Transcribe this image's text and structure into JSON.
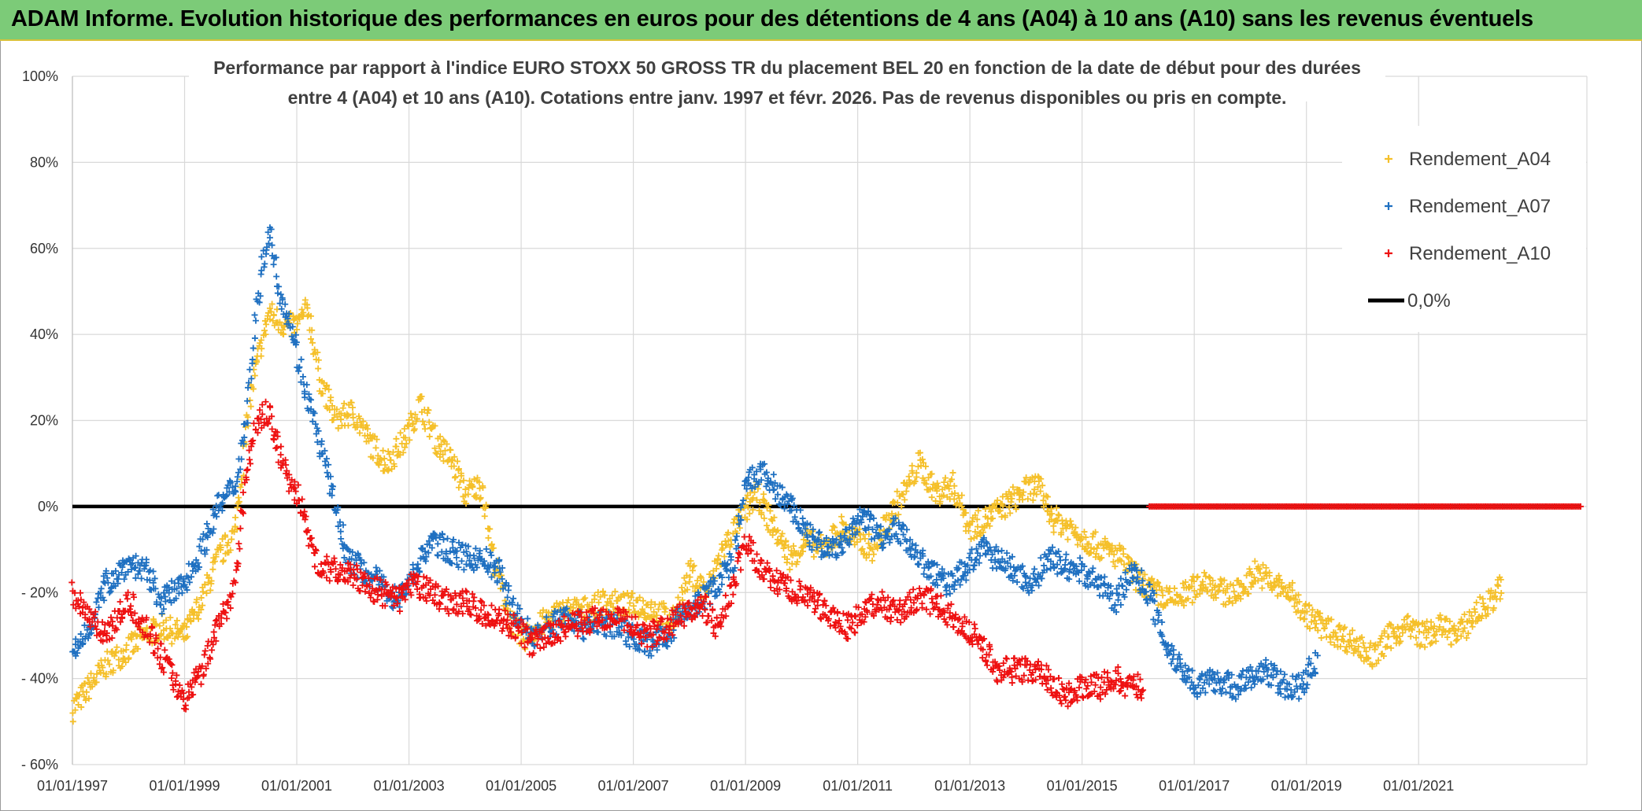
{
  "banner": {
    "title": "ADAM Informe. Evolution historique des performances en euros pour des détentions de 4 ans (A04) à 10 ans (A10) sans les revenus éventuels"
  },
  "colors": {
    "banner_bg": "#7ccb78",
    "a04": "#f5c02a",
    "a07": "#1f70c1",
    "a10": "#ee1111",
    "zero": "#000000"
  },
  "chart_data": {
    "type": "scatter",
    "title": "Performance par rapport à l'indice EURO STOXX 50 GROSS TR  du placement BEL 20 en fonction de la date de début pour des durées",
    "subtitle": "entre 4 (A04) et 10 ans (A10). Cotations entre janv. 1997 et févr. 2026. Pas de revenus disponibles ou pris en compte.",
    "x_range": [
      "1997-01-01",
      "2023-12-31"
    ],
    "ylim": [
      -60,
      100
    ],
    "y_ticks": [
      "100%",
      "80%",
      "60%",
      "40%",
      "20%",
      "0%",
      "- 20%",
      "- 40%",
      "- 60%"
    ],
    "y_tick_values": [
      100,
      80,
      60,
      40,
      20,
      0,
      -20,
      -40,
      -60
    ],
    "x_ticks": [
      "01/01/1997",
      "01/01/1999",
      "01/01/2001",
      "01/01/2003",
      "01/01/2005",
      "01/01/2007",
      "01/01/2009",
      "01/01/2011",
      "01/01/2013",
      "01/01/2015",
      "01/01/2017",
      "01/01/2019",
      "01/01/2021"
    ],
    "x_tick_years": [
      1997,
      1999,
      2001,
      2003,
      2005,
      2007,
      2009,
      2011,
      2013,
      2015,
      2017,
      2019,
      2021
    ],
    "grid": true,
    "legend_position": "top-right",
    "series": [
      {
        "name": "Rendement_A04",
        "color": "#f5c02a",
        "x": [
          1997.0,
          1997.3,
          1997.6,
          1998.0,
          1998.3,
          1998.6,
          1999.0,
          1999.3,
          1999.6,
          1999.9,
          2000.2,
          2000.5,
          2000.8,
          2001.0,
          2001.2,
          2001.4,
          2001.7,
          2002.0,
          2002.3,
          2002.6,
          2002.9,
          2003.2,
          2003.5,
          2003.8,
          2004.0,
          2004.3,
          2004.5,
          2004.8,
          2005.0,
          2005.3,
          2005.6,
          2005.9,
          2006.2,
          2006.5,
          2006.8,
          2007.1,
          2007.4,
          2007.7,
          2008.0,
          2008.3,
          2008.6,
          2008.9,
          2009.2,
          2009.5,
          2009.8,
          2010.1,
          2010.4,
          2010.7,
          2011.0,
          2011.3,
          2011.6,
          2011.9,
          2012.1,
          2012.4,
          2012.7,
          2013.0,
          2013.3,
          2013.6,
          2013.9,
          2014.2,
          2014.5,
          2014.8,
          2015.1,
          2015.4,
          2015.7,
          2016.0,
          2016.3,
          2016.6,
          2016.9,
          2017.2,
          2017.5,
          2017.8,
          2018.1,
          2018.4,
          2018.7,
          2019.0,
          2019.3,
          2019.6,
          2019.9,
          2020.2,
          2020.5,
          2020.8,
          2021.1,
          2021.4,
          2021.7,
          2022.0,
          2022.3,
          2022.5
        ],
        "y": [
          -47,
          -42,
          -37,
          -33,
          -30,
          -28,
          -30,
          -22,
          -12,
          -6,
          28,
          45,
          42,
          42,
          46,
          30,
          20,
          22,
          15,
          10,
          15,
          24,
          15,
          10,
          3,
          5,
          -12,
          -26,
          -31,
          -28,
          -25,
          -24,
          -24,
          -22,
          -23,
          -23,
          -24,
          -27,
          -15,
          -20,
          -10,
          -3,
          3,
          -5,
          -12,
          -8,
          -10,
          -5,
          -8,
          -10,
          -2,
          5,
          10,
          3,
          5,
          -5,
          -3,
          0,
          3,
          5,
          -3,
          -5,
          -8,
          -10,
          -12,
          -17,
          -20,
          -22,
          -20,
          -17,
          -20,
          -20,
          -15,
          -18,
          -20,
          -25,
          -28,
          -30,
          -32,
          -35,
          -30,
          -28,
          -30,
          -28,
          -30,
          -25,
          -22,
          -18
        ]
      },
      {
        "name": "Rendement_A07",
        "color": "#1f70c1",
        "x": [
          1997.0,
          1997.3,
          1997.6,
          1998.0,
          1998.3,
          1998.6,
          1999.0,
          1999.3,
          1999.6,
          1999.9,
          2000.1,
          2000.3,
          2000.5,
          2000.7,
          2000.9,
          2001.1,
          2001.3,
          2001.6,
          2001.9,
          2002.2,
          2002.5,
          2002.8,
          2003.1,
          2003.4,
          2003.7,
          2004.0,
          2004.3,
          2004.6,
          2004.9,
          2005.2,
          2005.5,
          2005.8,
          2006.1,
          2006.4,
          2006.7,
          2007.0,
          2007.3,
          2007.6,
          2007.9,
          2008.2,
          2008.5,
          2008.8,
          2009.0,
          2009.3,
          2009.6,
          2009.9,
          2010.2,
          2010.5,
          2010.8,
          2011.1,
          2011.4,
          2011.7,
          2012.0,
          2012.3,
          2012.6,
          2012.9,
          2013.2,
          2013.5,
          2013.8,
          2014.1,
          2014.4,
          2014.7,
          2015.0,
          2015.3,
          2015.6,
          2015.9,
          2016.2,
          2016.5,
          2016.8,
          2017.1,
          2017.4,
          2017.7,
          2018.0,
          2018.3,
          2018.6,
          2018.9,
          2019.2
        ],
        "y": [
          -35,
          -28,
          -18,
          -13,
          -15,
          -22,
          -18,
          -10,
          0,
          5,
          20,
          48,
          65,
          50,
          42,
          30,
          20,
          5,
          -12,
          -15,
          -18,
          -22,
          -15,
          -8,
          -10,
          -12,
          -12,
          -15,
          -25,
          -30,
          -28,
          -25,
          -28,
          -27,
          -28,
          -30,
          -32,
          -30,
          -25,
          -22,
          -18,
          -12,
          5,
          8,
          3,
          -2,
          -8,
          -10,
          -8,
          -2,
          -7,
          -5,
          -10,
          -15,
          -18,
          -15,
          -10,
          -12,
          -15,
          -18,
          -12,
          -14,
          -15,
          -18,
          -22,
          -15,
          -20,
          -32,
          -38,
          -42,
          -40,
          -42,
          -40,
          -38,
          -42,
          -42,
          -35
        ]
      },
      {
        "name": "Rendement_A10",
        "color": "#ee1111",
        "x": [
          1997.0,
          1997.3,
          1997.6,
          1998.0,
          1998.3,
          1998.6,
          1999.0,
          1999.3,
          1999.6,
          1999.9,
          2000.1,
          2000.3,
          2000.5,
          2000.7,
          2000.9,
          2001.1,
          2001.3,
          2001.6,
          2001.9,
          2002.2,
          2002.5,
          2002.8,
          2003.1,
          2003.4,
          2003.7,
          2004.0,
          2004.3,
          2004.6,
          2004.9,
          2005.2,
          2005.5,
          2005.8,
          2006.1,
          2006.4,
          2006.7,
          2007.0,
          2007.3,
          2007.6,
          2007.9,
          2008.2,
          2008.5,
          2008.8,
          2009.0,
          2009.3,
          2009.6,
          2009.9,
          2010.2,
          2010.5,
          2010.8,
          2011.1,
          2011.4,
          2011.7,
          2012.0,
          2012.3,
          2012.6,
          2012.9,
          2013.2,
          2013.5,
          2013.8,
          2014.1,
          2014.4,
          2014.7,
          2015.0,
          2015.3,
          2015.6,
          2015.9,
          2016.1
        ],
        "y": [
          -20,
          -25,
          -30,
          -22,
          -28,
          -35,
          -45,
          -38,
          -28,
          -18,
          8,
          20,
          22,
          12,
          5,
          0,
          -12,
          -15,
          -15,
          -18,
          -20,
          -22,
          -18,
          -20,
          -22,
          -22,
          -25,
          -26,
          -28,
          -32,
          -30,
          -28,
          -27,
          -26,
          -25,
          -28,
          -30,
          -28,
          -25,
          -22,
          -28,
          -18,
          -8,
          -15,
          -18,
          -20,
          -22,
          -25,
          -28,
          -25,
          -22,
          -25,
          -22,
          -22,
          -25,
          -28,
          -32,
          -38,
          -38,
          -38,
          -40,
          -44,
          -42,
          -42,
          -40,
          -42,
          -42
        ]
      },
      {
        "name": "0,0%",
        "color": "#000000",
        "x": [
          1997.0,
          2023.9
        ],
        "y": [
          0,
          0
        ]
      },
      {
        "name": "",
        "color": "#ee1111",
        "x": [
          2016.2,
          2023.9
        ],
        "y": [
          0,
          0
        ]
      }
    ]
  }
}
